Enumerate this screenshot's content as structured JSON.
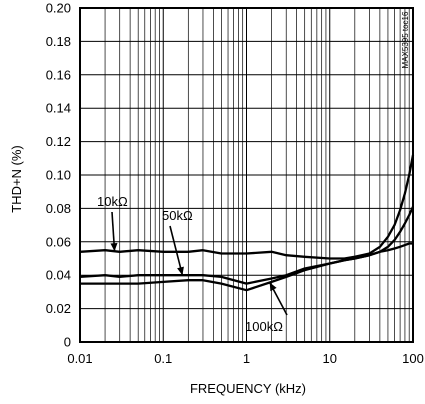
{
  "chart_data": {
    "type": "line",
    "title": "",
    "xlabel": "FREQUENCY (kHz)",
    "ylabel": "THD+N (%)",
    "watermark": "MAX5395 toc16",
    "x_scale": "log",
    "xlim": [
      0.01,
      100
    ],
    "ylim": [
      0,
      0.2
    ],
    "grid": true,
    "x_ticks": [
      {
        "value": 0.01,
        "label": "0.01"
      },
      {
        "value": 0.1,
        "label": "0.1"
      },
      {
        "value": 1,
        "label": "1"
      },
      {
        "value": 10,
        "label": "10"
      },
      {
        "value": 100,
        "label": "100"
      }
    ],
    "y_ticks": [
      {
        "value": 0,
        "label": "0"
      },
      {
        "value": 0.02,
        "label": "0.02"
      },
      {
        "value": 0.04,
        "label": "0.04"
      },
      {
        "value": 0.06,
        "label": "0.06"
      },
      {
        "value": 0.08,
        "label": "0.08"
      },
      {
        "value": 0.1,
        "label": "0.10"
      },
      {
        "value": 0.12,
        "label": "0.12"
      },
      {
        "value": 0.14,
        "label": "0.14"
      },
      {
        "value": 0.16,
        "label": "0.16"
      },
      {
        "value": 0.18,
        "label": "0.18"
      },
      {
        "value": 0.2,
        "label": "0.20"
      }
    ],
    "series": [
      {
        "name": "10kΩ",
        "x": [
          0.01,
          0.02,
          0.03,
          0.05,
          0.1,
          0.2,
          0.3,
          0.5,
          1,
          2,
          3,
          5,
          10,
          15,
          20,
          30,
          40,
          50,
          60,
          70,
          80,
          90,
          100
        ],
        "y": [
          0.054,
          0.055,
          0.054,
          0.055,
          0.054,
          0.054,
          0.055,
          0.053,
          0.053,
          0.054,
          0.052,
          0.051,
          0.05,
          0.05,
          0.051,
          0.053,
          0.057,
          0.063,
          0.07,
          0.079,
          0.089,
          0.1,
          0.112
        ]
      },
      {
        "name": "50kΩ",
        "x": [
          0.01,
          0.02,
          0.03,
          0.05,
          0.1,
          0.2,
          0.3,
          0.5,
          1,
          2,
          3,
          5,
          10,
          15,
          20,
          30,
          40,
          50,
          60,
          70,
          80,
          90,
          100
        ],
        "y": [
          0.039,
          0.04,
          0.039,
          0.04,
          0.04,
          0.04,
          0.04,
          0.039,
          0.035,
          0.038,
          0.04,
          0.044,
          0.047,
          0.049,
          0.05,
          0.052,
          0.054,
          0.057,
          0.061,
          0.066,
          0.071,
          0.076,
          0.081
        ]
      },
      {
        "name": "100kΩ",
        "x": [
          0.01,
          0.02,
          0.03,
          0.05,
          0.1,
          0.2,
          0.3,
          0.5,
          1,
          2,
          3,
          5,
          10,
          15,
          20,
          30,
          40,
          50,
          60,
          70,
          80,
          90,
          100
        ],
        "y": [
          0.035,
          0.035,
          0.035,
          0.035,
          0.036,
          0.037,
          0.037,
          0.035,
          0.031,
          0.036,
          0.039,
          0.043,
          0.047,
          0.049,
          0.05,
          0.052,
          0.054,
          0.055,
          0.056,
          0.057,
          0.058,
          0.059,
          0.059
        ]
      }
    ]
  }
}
